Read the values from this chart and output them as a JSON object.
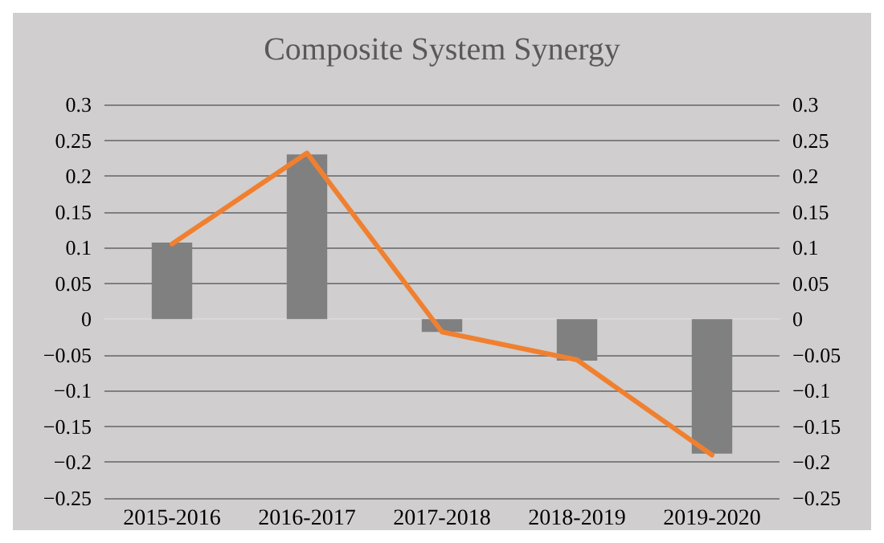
{
  "chart_data": {
    "type": "bar",
    "title": "Composite System Synergy",
    "categories": [
      "2015-2016",
      "2016-2017",
      "2017-2018",
      "2018-2019",
      "2019-2020"
    ],
    "series": [
      {
        "color": "#808080",
        "values": [
          0.107,
          0.23,
          -0.018,
          -0.058,
          -0.188
        ]
      },
      {
        "type": "line",
        "color": "#f08030",
        "values": [
          0.105,
          0.232,
          -0.018,
          -0.057,
          -0.19
        ]
      }
    ],
    "ylim": [
      -0.25,
      0.3
    ],
    "yticks": [
      -0.25,
      -0.2,
      -0.15,
      -0.1,
      -0.05,
      0,
      0.05,
      0.1,
      0.15,
      0.2,
      0.25,
      0.3
    ],
    "y2lim": [
      -0.25,
      0.3
    ],
    "y2ticks": [
      -0.25,
      -0.2,
      -0.15,
      -0.1,
      -0.05,
      0,
      0.05,
      0.1,
      0.15,
      0.2,
      0.25,
      0.3
    ],
    "grid": true,
    "marker": "none",
    "line_style": "solid"
  }
}
